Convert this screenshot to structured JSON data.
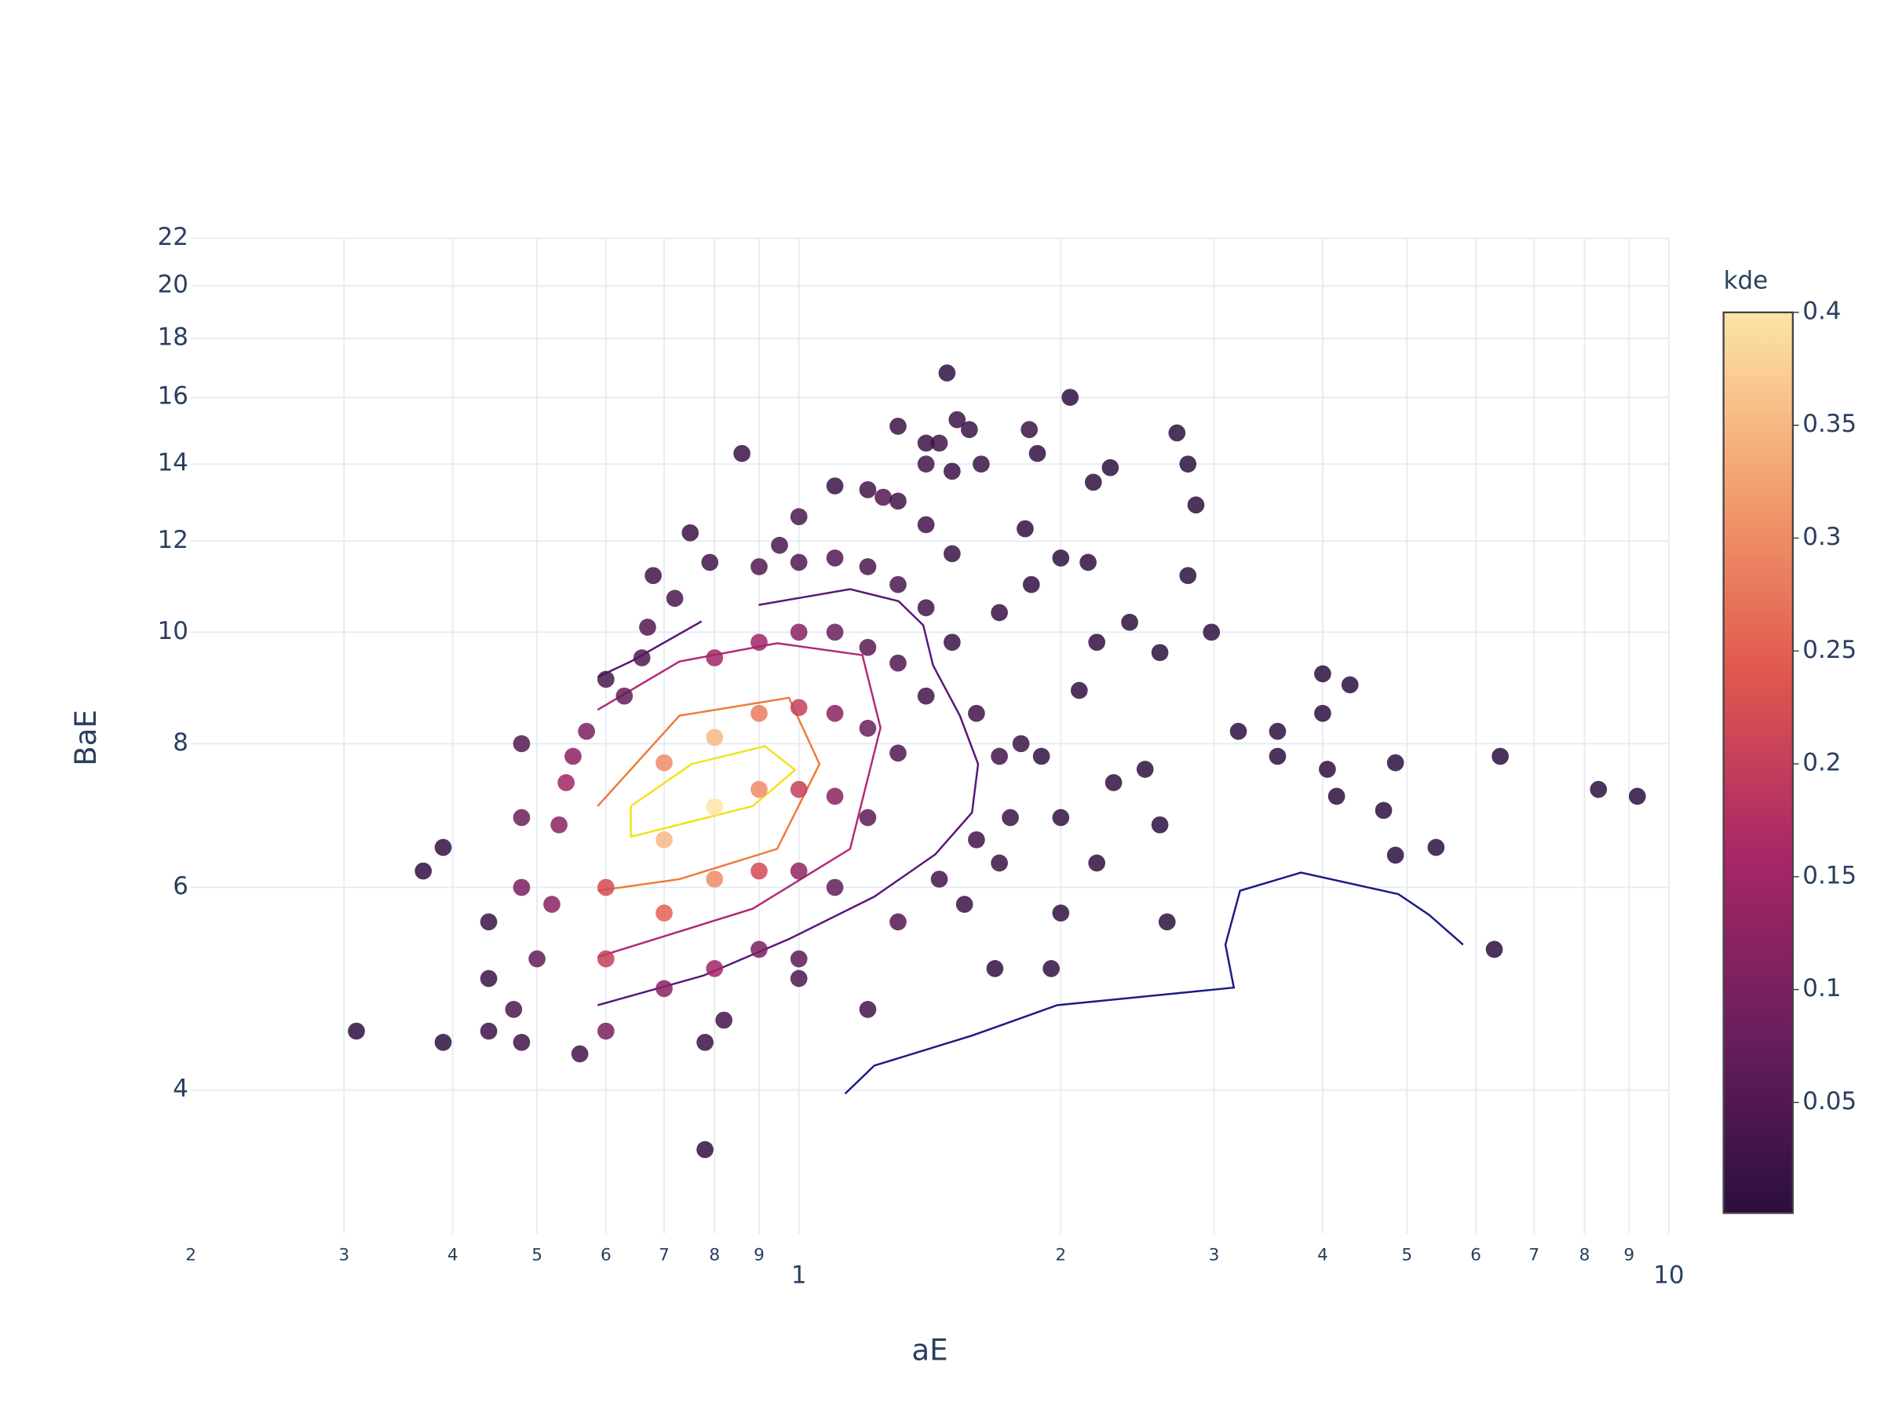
{
  "chart_data": {
    "type": "scatter",
    "x_label": "aE",
    "y_label": "BaE",
    "x_log": true,
    "y_log": true,
    "grid": true,
    "xlim": [
      0.2,
      10
    ],
    "ylim": [
      3,
      22
    ],
    "xticks": [
      {
        "value": 0.2,
        "label": "2"
      },
      {
        "value": 0.3,
        "label": "3"
      },
      {
        "value": 0.4,
        "label": "4"
      },
      {
        "value": 0.5,
        "label": "5"
      },
      {
        "value": 0.6,
        "label": "6"
      },
      {
        "value": 0.7,
        "label": "7"
      },
      {
        "value": 0.8,
        "label": "8"
      },
      {
        "value": 0.9,
        "label": "9"
      },
      1,
      2,
      3,
      4,
      5,
      6,
      7,
      8,
      9,
      10
    ],
    "yticks": [
      4,
      6,
      8,
      10,
      12,
      14,
      16,
      18,
      20,
      22
    ],
    "colorbar_title": "kde",
    "colorscale": [
      "#2b0f3e",
      "#6b1e5c",
      "#a92767",
      "#e0584e",
      "#f39e6e",
      "#fde5a7"
    ],
    "clim": [
      0.001,
      0.4
    ],
    "colorbar_ticks": [
      0.05,
      0.1,
      0.15,
      0.2,
      0.25,
      0.3,
      0.35,
      0.4
    ],
    "x": [
      0.31,
      0.39,
      0.37,
      0.39,
      0.44,
      0.44,
      0.44,
      0.48,
      0.48,
      0.48,
      0.48,
      0.47,
      0.56,
      0.78,
      0.86,
      0.75,
      0.68,
      0.79,
      0.72,
      0.67,
      0.95,
      1.0,
      1.25,
      1.48,
      1.52,
      1.45,
      1.4,
      1.62,
      1.57,
      1.84,
      2.05,
      1.88,
      2.28,
      2.18,
      2.72,
      2.8,
      2.86,
      2.8,
      2.98,
      3.2,
      3.55,
      3.55,
      4.0,
      4.3,
      4.0,
      4.05,
      4.15,
      4.7,
      4.85,
      4.85,
      5.4,
      6.3,
      6.4,
      8.3,
      9.2,
      2.65,
      2.0,
      1.95,
      1.68,
      1.2,
      1.0,
      0.82,
      0.78,
      0.6,
      0.7,
      0.8,
      0.9,
      0.6,
      0.7,
      0.8,
      0.9,
      1.0,
      1.1,
      0.6,
      0.7,
      0.8,
      0.9,
      1.0,
      1.1,
      1.2,
      1.3,
      0.7,
      0.8,
      0.9,
      1.0,
      1.1,
      1.2,
      1.3,
      1.4,
      0.8,
      0.9,
      1.0,
      1.1,
      1.2,
      1.3,
      1.4,
      1.5,
      0.9,
      1.0,
      1.1,
      1.2,
      1.3,
      1.4,
      1.5,
      1.0,
      1.1,
      1.2,
      1.3,
      1.4,
      1.5,
      1.6,
      1.7,
      1.75,
      1.8,
      1.6,
      1.7,
      1.9,
      2.0,
      2.1,
      2.2,
      2.3,
      2.4,
      2.5,
      2.6,
      2.6,
      2.2,
      1.7,
      1.85,
      2.0,
      2.15,
      1.82,
      1.45,
      1.55,
      1.3,
      0.5,
      0.52,
      0.54,
      0.53,
      0.57,
      0.55,
      0.63,
      0.66,
      0.6
    ],
    "y": [
      4.5,
      4.4,
      6.2,
      6.5,
      5.6,
      5.0,
      4.5,
      8.0,
      6.9,
      6.0,
      4.4,
      4.7,
      4.3,
      3.55,
      14.3,
      12.2,
      11.2,
      11.5,
      10.7,
      10.1,
      11.9,
      12.6,
      13.1,
      16.8,
      15.3,
      14.6,
      14.0,
      14.0,
      15,
      15,
      16,
      14.3,
      13.9,
      13.5,
      14.9,
      14,
      12.9,
      11.2,
      10.0,
      8.2,
      8.2,
      7.8,
      9.2,
      9.0,
      8.5,
      7.6,
      7.2,
      7.0,
      7.7,
      6.4,
      6.5,
      5.3,
      7.8,
      7.3,
      7.2,
      5.6,
      5.7,
      5.1,
      5.1,
      4.7,
      5.0,
      4.6,
      4.4,
      6.0,
      7.7,
      9.5,
      11.4,
      5.2,
      6.6,
      8.1,
      9.8,
      11.5,
      13.4,
      4.5,
      5.7,
      7.05,
      8.5,
      10,
      11.6,
      13.3,
      15.1,
      4.9,
      6.1,
      7.3,
      8.6,
      10.0,
      11.4,
      13.0,
      14.6,
      5.1,
      6.2,
      7.3,
      8.5,
      9.7,
      11.0,
      12.4,
      13.8,
      5.3,
      6.2,
      7.2,
      8.25,
      9.4,
      10.5,
      11.7,
      5.2,
      6.0,
      6.9,
      7.85,
      8.8,
      9.8,
      8.5,
      7.8,
      6.9,
      8.0,
      6.6,
      6.3,
      7.8,
      6.9,
      8.9,
      9.8,
      7.4,
      10.2,
      7.6,
      9.6,
      6.8,
      6.3,
      10.4,
      11.0,
      11.6,
      11.5,
      12.3,
      6.1,
      5.8,
      5.6,
      5.2,
      5.8,
      7.4,
      6.8,
      8.2,
      7.8,
      8.8,
      9.5,
      9.1
    ],
    "kde": [
      0.005,
      0.005,
      0.01,
      0.01,
      0.02,
      0.02,
      0.02,
      0.05,
      0.08,
      0.1,
      0.03,
      0.04,
      0.03,
      0.01,
      0.02,
      0.02,
      0.03,
      0.03,
      0.04,
      0.05,
      0.04,
      0.04,
      0.05,
      0.01,
      0.02,
      0.03,
      0.03,
      0.02,
      0.02,
      0.02,
      0.005,
      0.01,
      0.005,
      0.01,
      0.005,
      0.005,
      0.005,
      0.005,
      0.005,
      0.005,
      0.005,
      0.005,
      0.003,
      0.003,
      0.003,
      0.003,
      0.003,
      0.003,
      0.003,
      0.003,
      0.003,
      0.002,
      0.002,
      0.002,
      0.002,
      0.005,
      0.01,
      0.01,
      0.01,
      0.03,
      0.04,
      0.03,
      0.02,
      0.22,
      0.3,
      0.15,
      0.05,
      0.2,
      0.35,
      0.35,
      0.15,
      0.05,
      0.02,
      0.1,
      0.25,
      0.4,
      0.28,
      0.12,
      0.05,
      0.03,
      0.02,
      0.12,
      0.3,
      0.3,
      0.2,
      0.08,
      0.04,
      0.03,
      0.02,
      0.15,
      0.22,
      0.2,
      0.12,
      0.06,
      0.04,
      0.03,
      0.02,
      0.1,
      0.13,
      0.12,
      0.08,
      0.05,
      0.03,
      0.02,
      0.06,
      0.07,
      0.06,
      0.05,
      0.03,
      0.02,
      0.03,
      0.03,
      0.02,
      0.02,
      0.03,
      0.02,
      0.01,
      0.01,
      0.01,
      0.01,
      0.008,
      0.006,
      0.006,
      0.005,
      0.005,
      0.008,
      0.015,
      0.01,
      0.006,
      0.006,
      0.01,
      0.03,
      0.02,
      0.05,
      0.07,
      0.12,
      0.15,
      0.12,
      0.1,
      0.12,
      0.07,
      0.05,
      0.04
    ],
    "contours": [
      {
        "color": "#1b1b85",
        "x": [
          1.13,
          1.221,
          1.581,
          1.981,
          3.162,
          3.092,
          3.214,
          3.776,
          4.887,
          5.3,
          5.8
        ],
        "y": [
          3.97,
          4.2,
          4.46,
          4.74,
          4.91,
          5.35,
          5.96,
          6.18,
          5.92,
          5.68,
          5.35
        ]
      },
      {
        "color": "#5a167a",
        "x": [
          0.587,
          0.641,
          0.773,
          null,
          0.899,
          1.145,
          1.302,
          1.39,
          1.426,
          1.531,
          1.607,
          1.581,
          1.435,
          1.221,
          0.974,
          0.777,
          0.587
        ],
        "y": [
          9.14,
          9.43,
          10.22,
          null,
          10.56,
          10.9,
          10.64,
          10.14,
          9.36,
          8.46,
          7.68,
          6.97,
          6.41,
          5.89,
          5.41,
          5.03,
          4.74
        ]
      },
      {
        "color": "#b2287a",
        "x": [
          0.587,
          0.729,
          0.944,
          1.183,
          1.241,
          1.145,
          0.885,
          0.587
        ],
        "y": [
          8.56,
          9.43,
          9.78,
          9.55,
          8.26,
          6.48,
          5.75,
          5.22
        ]
      },
      {
        "color": "#ee7a3a",
        "x": [
          0.587,
          0.729,
          0.974,
          1.056,
          0.944,
          0.729,
          0.587
        ],
        "y": [
          7.06,
          8.46,
          8.77,
          7.68,
          6.48,
          6.1,
          5.96
        ]
      },
      {
        "color": "#f2e21a",
        "x": [
          0.641,
          0.753,
          0.914,
          0.99,
          0.885,
          0.641,
          0.641
        ],
        "y": [
          7.06,
          7.68,
          7.96,
          7.59,
          7.06,
          6.64,
          7.06
        ]
      }
    ]
  }
}
